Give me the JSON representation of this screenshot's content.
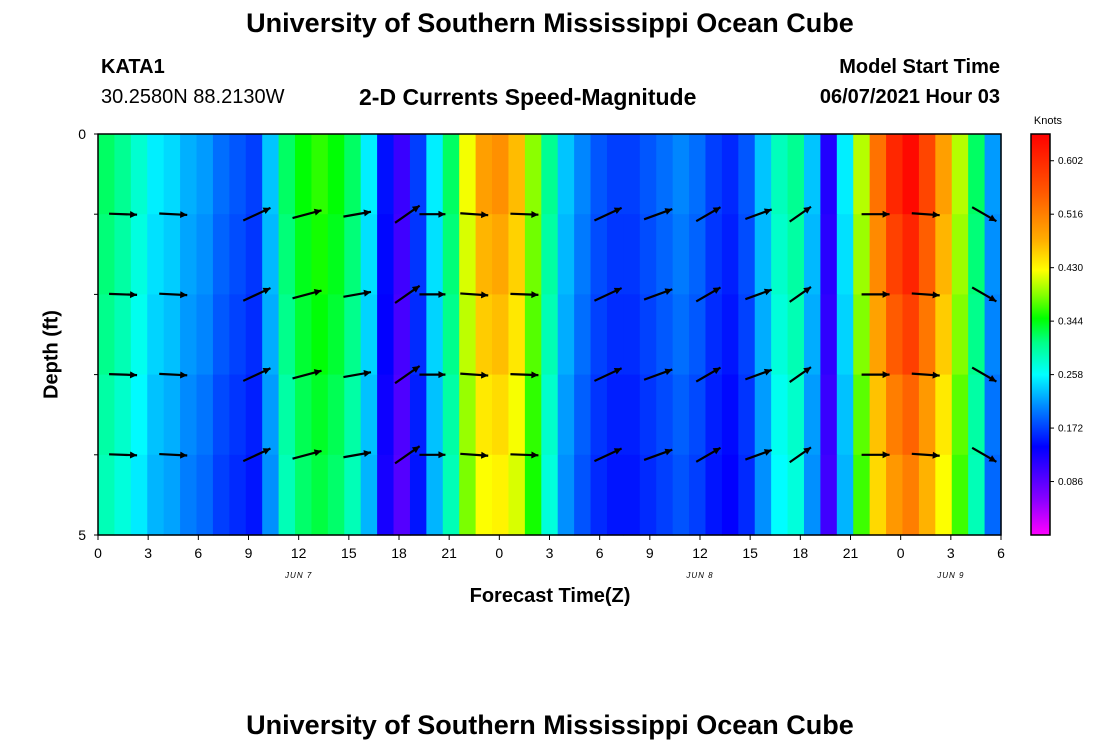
{
  "header": {
    "title": "University of Southern Mississippi Ocean Cube",
    "station": "KATA1",
    "coordinates": "30.2580N  88.2130W",
    "plot_title": "2-D Currents Speed-Magnitude",
    "model_start_label": "Model Start Time",
    "model_start_value": "06/07/2021 Hour 03"
  },
  "footer": {
    "title": "University of Southern Mississippi Ocean Cube"
  },
  "colors": {
    "scale": [
      "#ff00ff",
      "#8800ff",
      "#0000ff",
      "#0088ff",
      "#00ffff",
      "#00ff88",
      "#00ff00",
      "#88ff00",
      "#ffff00",
      "#ffaa00",
      "#ff5500",
      "#ff0000"
    ]
  },
  "chart_data": {
    "type": "heatmap",
    "title": "2-D Currents Speed-Magnitude",
    "xlabel": "Forecast Time(Z)",
    "ylabel": "Depth (ft)",
    "ylim": [
      0,
      5
    ],
    "y_tick_labels": [
      "0",
      "5"
    ],
    "x_tick_labels": [
      "0",
      "3",
      "6",
      "9",
      "12",
      "15",
      "18",
      "21",
      "0",
      "3",
      "6",
      "9",
      "12",
      "15",
      "18",
      "21",
      "0",
      "3",
      "6"
    ],
    "date_labels": [
      {
        "label": "JUN 7",
        "hour": 12
      },
      {
        "label": "JUN 8",
        "hour": 36
      },
      {
        "label": "JUN 9",
        "hour": 51
      }
    ],
    "x_range_hours": [
      0,
      54
    ],
    "colorbar": {
      "unit": "Knots",
      "range": [
        0.0,
        0.645
      ],
      "tick_labels": [
        "0.602",
        "0.516",
        "0.430",
        "0.344",
        "0.258",
        "0.172",
        "0.086"
      ],
      "tick_values": [
        0.602,
        0.516,
        0.43,
        0.344,
        0.258,
        0.172,
        0.086
      ]
    },
    "speed_by_hour": [
      0.3,
      0.28,
      0.25,
      0.22,
      0.21,
      0.19,
      0.18,
      0.16,
      0.15,
      0.14,
      0.2,
      0.3,
      0.34,
      0.36,
      0.34,
      0.3,
      0.22,
      0.12,
      0.09,
      0.14,
      0.22,
      0.3,
      0.45,
      0.52,
      0.53,
      0.5,
      0.4,
      0.28,
      0.2,
      0.17,
      0.15,
      0.14,
      0.14,
      0.15,
      0.16,
      0.17,
      0.16,
      0.14,
      0.13,
      0.15,
      0.2,
      0.26,
      0.28,
      0.2,
      0.1,
      0.22,
      0.42,
      0.55,
      0.6,
      0.62,
      0.58,
      0.52,
      0.42,
      0.3,
      0.18
    ],
    "depth_variation": [
      1.03,
      1.0,
      0.97,
      0.93,
      0.9
    ],
    "vectors": {
      "hours": [
        1.5,
        4.5,
        9.5,
        12.5,
        15.5,
        18.5,
        20,
        22.5,
        25.5,
        30.5,
        33.5,
        36.5,
        39.5,
        42,
        46.5,
        49.5,
        53
      ],
      "depths": [
        1,
        2,
        3,
        4
      ],
      "angles_deg": [
        -2,
        -3,
        25,
        15,
        10,
        35,
        0,
        -4,
        -2,
        25,
        20,
        30,
        20,
        35,
        0,
        -4,
        -30
      ],
      "lengths_px": [
        28,
        28,
        30,
        30,
        28,
        30,
        26,
        28,
        28,
        30,
        30,
        28,
        28,
        26,
        28,
        28,
        28
      ]
    }
  }
}
